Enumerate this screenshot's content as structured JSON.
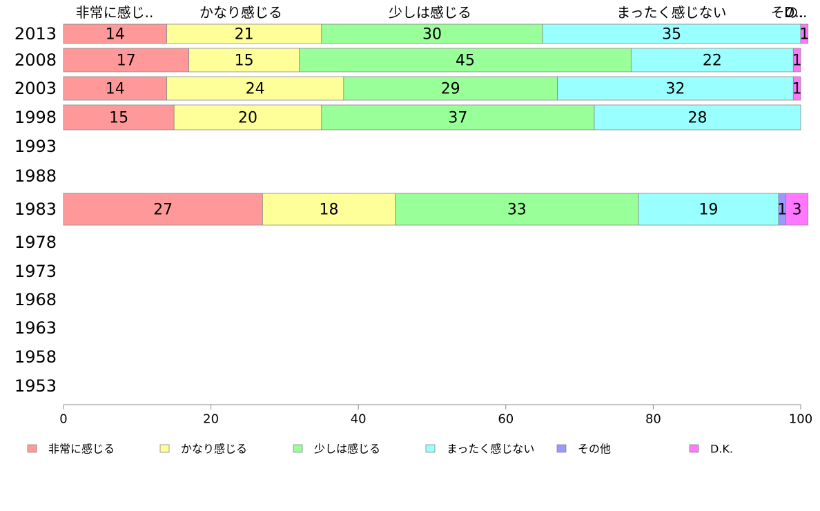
{
  "chart_data": {
    "type": "bar",
    "orientation": "horizontal",
    "stacked": true,
    "categories": [
      "2013",
      "2008",
      "2003",
      "1998",
      "1993",
      "1988",
      "1983",
      "1978",
      "1973",
      "1968",
      "1963",
      "1958",
      "1953"
    ],
    "series": [
      {
        "name": "非常に感じる",
        "color": "#ff9999",
        "values": [
          14,
          17,
          14,
          15,
          null,
          null,
          27,
          null,
          null,
          null,
          null,
          null,
          null
        ]
      },
      {
        "name": "かなり感じる",
        "color": "#ffff99",
        "values": [
          21,
          15,
          24,
          20,
          null,
          null,
          18,
          null,
          null,
          null,
          null,
          null,
          null
        ]
      },
      {
        "name": "少しは感じる",
        "color": "#99ff99",
        "values": [
          30,
          45,
          29,
          37,
          null,
          null,
          33,
          null,
          null,
          null,
          null,
          null,
          null
        ]
      },
      {
        "name": "まったく感じない",
        "color": "#99ffff",
        "values": [
          35,
          22,
          32,
          28,
          null,
          null,
          19,
          null,
          null,
          null,
          null,
          null,
          null
        ]
      },
      {
        "name": "その他",
        "color": "#9999ff",
        "values": [
          0,
          0,
          0,
          0,
          null,
          null,
          1,
          null,
          null,
          null,
          null,
          null,
          null
        ]
      },
      {
        "name": "D.K.",
        "color": "#ff77ff",
        "values": [
          1,
          1,
          1,
          0,
          null,
          null,
          3,
          null,
          null,
          null,
          null,
          null,
          null
        ]
      }
    ],
    "header_labels": [
      "非常に感じ..",
      "かなり感じる",
      "少しは感じる",
      "まったく感じない",
      "その..",
      "D.."
    ],
    "xlim": [
      0,
      100
    ],
    "xticks": [
      0,
      20,
      40,
      60,
      80,
      100
    ],
    "legend_position": "bottom",
    "grid": false
  }
}
